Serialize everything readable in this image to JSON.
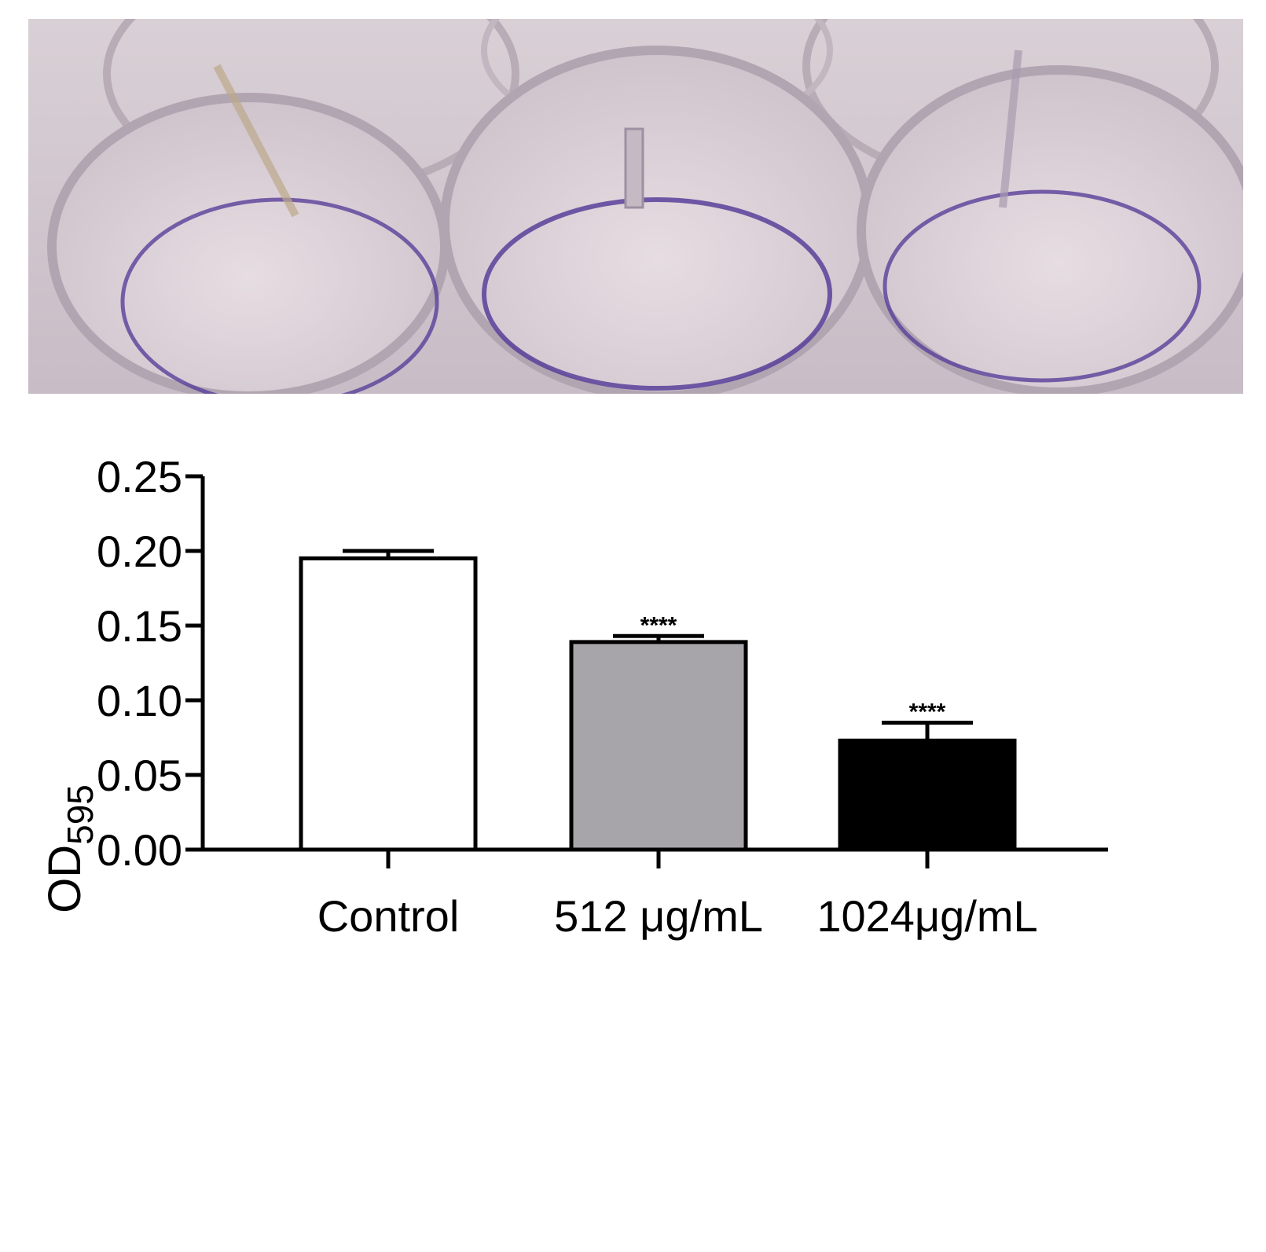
{
  "photo": {
    "description_icon": "well-plate-photo",
    "colors": {
      "background": "#cdc2c8",
      "ring": "#b7aab9",
      "stain": "#6a4fa0"
    }
  },
  "chart_data": {
    "type": "bar",
    "ylabel_main": "OD",
    "ylabel_sub": "595",
    "ylim": [
      0,
      0.25
    ],
    "yticks": [
      "0.00",
      "0.05",
      "0.10",
      "0.15",
      "0.20",
      "0.25"
    ],
    "categories": [
      "Control",
      "512 μg/mL",
      "1024μg/mL"
    ],
    "values": [
      0.195,
      0.139,
      0.073
    ],
    "errors": [
      0.005,
      0.004,
      0.012
    ],
    "significance": [
      "",
      "****",
      "****"
    ],
    "bar_colors": [
      "#ffffff",
      "#a7a5aa",
      "#000000"
    ],
    "grid": false,
    "legend": "none"
  }
}
